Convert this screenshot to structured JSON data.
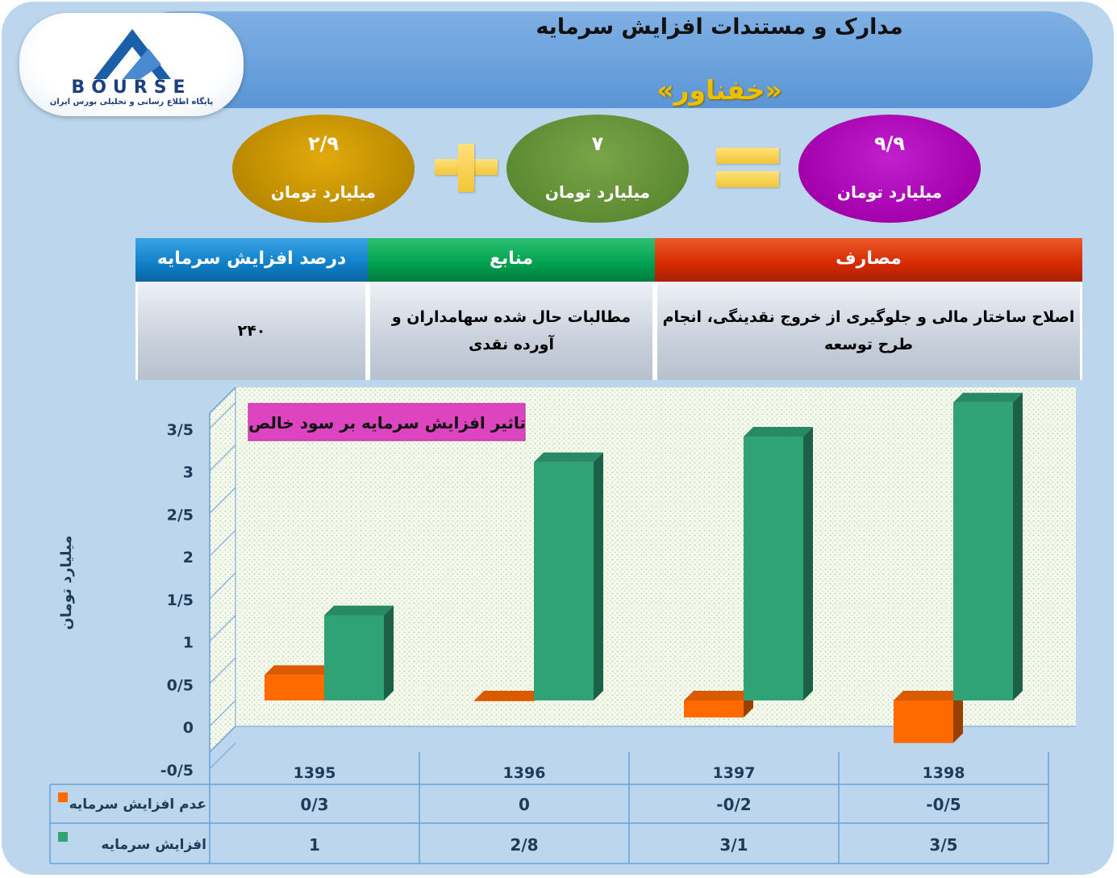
{
  "header": {
    "title": "مدارک و مستندات افزایش سرمایه",
    "subtitle": "«خفناور»"
  },
  "logo": {
    "name": "BOURSE",
    "tagline": "پایگاه اطلاع رسانی و تحلیلی بورس ایران"
  },
  "equation": {
    "total": {
      "value": "۹/۹",
      "unit": "میلیارد تومان"
    },
    "part1": {
      "value": "۷",
      "unit": "میلیارد تومان"
    },
    "part2": {
      "value": "۲/۹",
      "unit": "میلیارد تومان"
    }
  },
  "info_table": {
    "headers": {
      "expenses": "مصارف",
      "sources": "منابع",
      "percent": "درصد افزایش سرمایه"
    },
    "values": {
      "expenses": "اصلاح ساختار مالی و جلوگیری از خروج نقدینگی، انجام طرح توسعه",
      "sources": "مطالبات حال شده سهامداران و آورده نقدی",
      "percent": "۲۴۰"
    }
  },
  "colors": {
    "orange": "#ff6a00",
    "green": "#2fa276",
    "red": "#d42a00",
    "teal": "#00a050",
    "blue": "#0f7fc8"
  },
  "chart_data": {
    "type": "bar",
    "title": "تاثیر افزایش سرمایه بر سود خالص",
    "ylabel": "میلیارد تومان",
    "categories": [
      "1395",
      "1396",
      "1397",
      "1398"
    ],
    "series": [
      {
        "name": "عدم افزایش سرمایه",
        "values": [
          0.3,
          0,
          -0.2,
          -0.5
        ],
        "labels": [
          "0/3",
          "0",
          "-0/2",
          "-0/5"
        ],
        "color": "#ff6a00"
      },
      {
        "name": "افزایش سرمایه",
        "values": [
          1,
          2.8,
          3.1,
          3.5
        ],
        "labels": [
          "1",
          "2/8",
          "3/1",
          "3/5"
        ],
        "color": "#2fa276"
      }
    ],
    "ylim": [
      -0.5,
      3.5
    ],
    "yticks": [
      3.5,
      3,
      2.5,
      2,
      1.5,
      1,
      0.5,
      0,
      -0.5
    ],
    "ytick_labels": [
      "3/5",
      "3",
      "2/5",
      "2",
      "1/5",
      "1",
      "0/5",
      "0",
      "-0/5"
    ],
    "grid": false,
    "legend": "table-below"
  }
}
